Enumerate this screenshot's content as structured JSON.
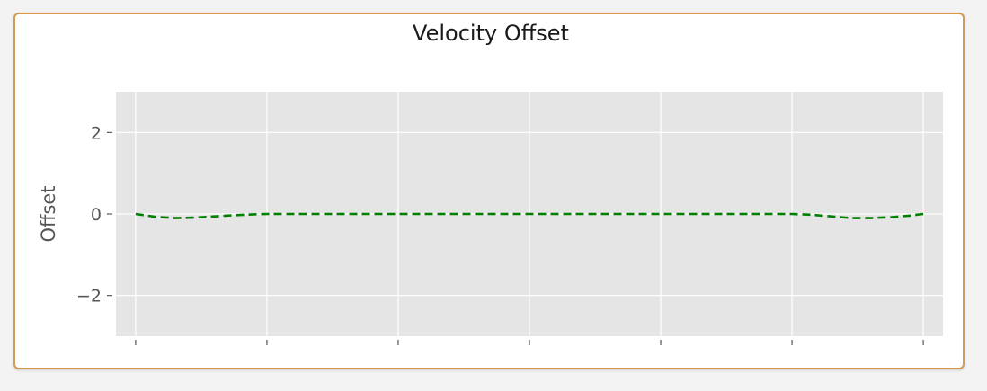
{
  "chart_data": {
    "type": "line",
    "title": "Velocity Offset",
    "xlabel": "",
    "ylabel": "Offset",
    "ylim": [
      -3,
      3
    ],
    "xlim": [
      -0.15,
      6.15
    ],
    "yticks": [
      2,
      0,
      -2
    ],
    "ytick_labels": [
      "2",
      "0",
      "−2"
    ],
    "xticks": [
      0,
      1,
      2,
      3,
      4,
      5,
      6
    ],
    "xtick_labels": [
      "",
      "",
      "",
      "",
      "",
      "",
      ""
    ],
    "grid": true,
    "legend": "none",
    "series": [
      {
        "color": "#008000",
        "linestyle": "dashed",
        "x": [
          0,
          0.15,
          0.3,
          0.45,
          0.6,
          0.75,
          0.9,
          1.0,
          2.0,
          3.0,
          4.0,
          5.0,
          5.15,
          5.3,
          5.45,
          5.6,
          5.75,
          5.9,
          6.0
        ],
        "y": [
          0,
          -0.07,
          -0.1,
          -0.09,
          -0.06,
          -0.03,
          -0.01,
          0,
          0,
          0,
          0,
          0,
          -0.02,
          -0.06,
          -0.1,
          -0.1,
          -0.08,
          -0.04,
          0
        ]
      }
    ]
  },
  "colors": {
    "panel_border": "#d39a54",
    "plot_background": "#e5e5e5",
    "grid": "#ffffff",
    "line": "#008000"
  }
}
